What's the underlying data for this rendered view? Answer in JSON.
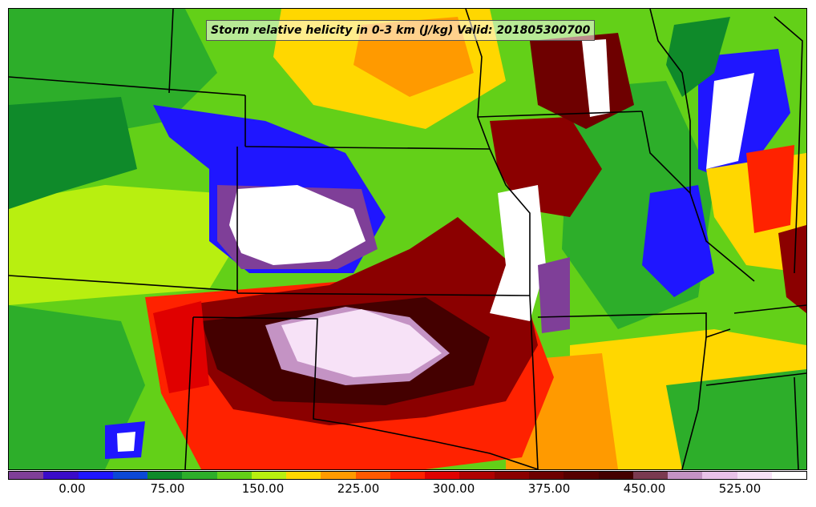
{
  "title": "Storm relative helicity in 0-3 km (J/kg) Valid: 201805300700",
  "colors": {
    "bins": [
      "#7f3f98",
      "#3a0cc8",
      "#1f16ff",
      "#0c48d6",
      "#0f8a2a",
      "#2dae2a",
      "#63d018",
      "#b8ef10",
      "#ffd700",
      "#ff9a00",
      "#ff5a00",
      "#ff2200",
      "#e00000",
      "#b00000",
      "#8b0000",
      "#6e0000",
      "#560000",
      "#440000",
      "#7a3a50",
      "#c493c4",
      "#e9c2e9",
      "#f7e2f7",
      "#ffffff"
    ],
    "background": "#ffffff",
    "border_line": "#000000"
  },
  "colorbar": {
    "ticks": [
      "0.00",
      "75.00",
      "150.00",
      "225.00",
      "300.00",
      "375.00",
      "450.00",
      "525.00"
    ]
  }
}
